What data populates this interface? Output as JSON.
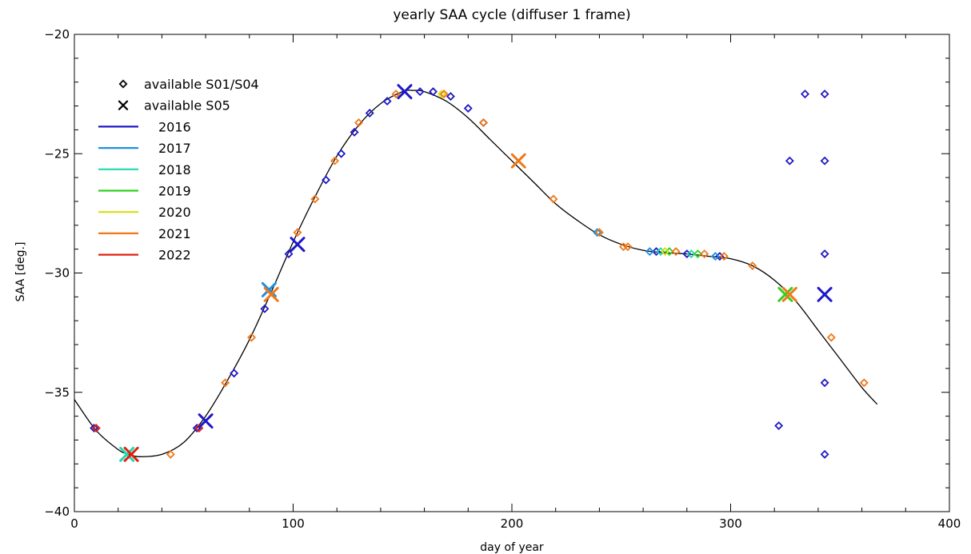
{
  "chart_data": {
    "type": "scatter",
    "title": "yearly SAA cycle (diffuser 1 frame)",
    "xlabel": "day of year",
    "ylabel": "SAA [deg.]",
    "xlim": [
      0,
      400
    ],
    "ylim": [
      -40,
      -20
    ],
    "xticks": [
      0,
      100,
      200,
      300,
      400
    ],
    "yticks": [
      -40,
      -35,
      -30,
      -25,
      -20
    ],
    "grid": false,
    "legend_placement": "top-left",
    "legend": {
      "markers": [
        {
          "symbol": "diamond",
          "label": "available S01/S04"
        },
        {
          "symbol": "cross",
          "label": "available S05"
        }
      ],
      "years": [
        {
          "label": "2016",
          "color": "#1f18c8"
        },
        {
          "label": "2017",
          "color": "#1e90e0"
        },
        {
          "label": "2018",
          "color": "#20d8b0"
        },
        {
          "label": "2019",
          "color": "#30d020"
        },
        {
          "label": "2020",
          "color": "#d8e010"
        },
        {
          "label": "2021",
          "color": "#f07818"
        },
        {
          "label": "2022",
          "color": "#e02010"
        }
      ]
    },
    "curve": {
      "name": "",
      "color": "#000000",
      "x": [
        0,
        10,
        20,
        25,
        30,
        40,
        50,
        60,
        70,
        80,
        90,
        100,
        110,
        120,
        130,
        140,
        150,
        155,
        160,
        170,
        180,
        190,
        200,
        210,
        220,
        230,
        240,
        250,
        260,
        270,
        280,
        290,
        300,
        310,
        320,
        330,
        340,
        350,
        360,
        367
      ],
      "y": [
        -35.3,
        -36.6,
        -37.4,
        -37.6,
        -37.7,
        -37.6,
        -37.1,
        -36.0,
        -34.5,
        -32.8,
        -30.8,
        -28.7,
        -26.8,
        -25.1,
        -23.8,
        -22.9,
        -22.4,
        -22.35,
        -22.4,
        -22.8,
        -23.5,
        -24.4,
        -25.3,
        -26.2,
        -27.1,
        -27.8,
        -28.4,
        -28.8,
        -29.05,
        -29.15,
        -29.2,
        -29.3,
        -29.4,
        -29.7,
        -30.3,
        -31.2,
        -32.4,
        -33.6,
        -34.8,
        -35.5
      ]
    },
    "series": [
      {
        "name": "2016",
        "color": "#1f18c8",
        "diamonds": [
          [
            9,
            -36.5
          ],
          [
            56,
            -36.5
          ],
          [
            73,
            -34.2
          ],
          [
            87,
            -31.5
          ],
          [
            98,
            -29.2
          ],
          [
            115,
            -26.1
          ],
          [
            122,
            -25.0
          ],
          [
            128,
            -24.1
          ],
          [
            135,
            -23.3
          ],
          [
            143,
            -22.8
          ],
          [
            158,
            -22.4
          ],
          [
            164,
            -22.4
          ],
          [
            172,
            -22.6
          ],
          [
            180,
            -23.1
          ],
          [
            187,
            -23.7
          ],
          [
            266,
            -29.1
          ],
          [
            280,
            -29.2
          ],
          [
            295,
            -29.3
          ],
          [
            322,
            -36.4
          ],
          [
            334,
            -22.5
          ],
          [
            327,
            -25.3
          ],
          [
            343,
            -22.5
          ],
          [
            343,
            -25.3
          ],
          [
            343,
            -29.2
          ],
          [
            343,
            -34.6
          ],
          [
            343,
            -37.6
          ]
        ],
        "crosses": [
          [
            60,
            -36.2
          ],
          [
            102,
            -28.8
          ],
          [
            151,
            -22.4
          ],
          [
            343,
            -30.9
          ]
        ]
      },
      {
        "name": "2017",
        "color": "#1e90e0",
        "diamonds": [
          [
            239,
            -28.3
          ],
          [
            263,
            -29.1
          ],
          [
            293,
            -29.3
          ]
        ],
        "crosses": [
          [
            89,
            -30.7
          ]
        ]
      },
      {
        "name": "2018",
        "color": "#20d8b0",
        "diamonds": [
          [
            268,
            -29.1
          ],
          [
            282,
            -29.2
          ]
        ],
        "crosses": [
          [
            24,
            -37.6
          ]
        ]
      },
      {
        "name": "2019",
        "color": "#30d020",
        "diamonds": [
          [
            272,
            -29.1
          ],
          [
            285,
            -29.2
          ]
        ],
        "crosses": [
          [
            325,
            -30.9
          ]
        ]
      },
      {
        "name": "2020",
        "color": "#d8e010",
        "diamonds": [
          [
            270,
            -29.1
          ],
          [
            168,
            -22.5
          ]
        ],
        "crosses": []
      },
      {
        "name": "2021",
        "color": "#f07818",
        "diamonds": [
          [
            44,
            -37.6
          ],
          [
            69,
            -34.6
          ],
          [
            81,
            -32.7
          ],
          [
            102,
            -28.3
          ],
          [
            110,
            -26.9
          ],
          [
            119,
            -25.3
          ],
          [
            130,
            -23.7
          ],
          [
            147,
            -22.5
          ],
          [
            169,
            -22.5
          ],
          [
            187,
            -23.7
          ],
          [
            219,
            -26.9
          ],
          [
            240,
            -28.3
          ],
          [
            251,
            -28.9
          ],
          [
            253,
            -28.9
          ],
          [
            275,
            -29.1
          ],
          [
            288,
            -29.2
          ],
          [
            297,
            -29.3
          ],
          [
            310,
            -29.7
          ],
          [
            346,
            -32.7
          ],
          [
            361,
            -34.6
          ]
        ],
        "crosses": [
          [
            90,
            -30.9
          ],
          [
            203,
            -25.3
          ],
          [
            327,
            -30.9
          ]
        ]
      },
      {
        "name": "2022",
        "color": "#e02010",
        "diamonds": [
          [
            10,
            -36.5
          ],
          [
            57,
            -36.5
          ]
        ],
        "crosses": [
          [
            26,
            -37.6
          ]
        ]
      }
    ]
  }
}
